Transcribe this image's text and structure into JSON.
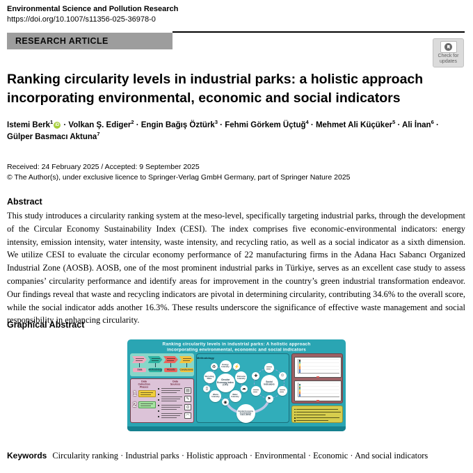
{
  "header": {
    "journal_title": "Environmental Science and Pollution Research",
    "doi": "https://doi.org/10.1007/s11356-025-36978-0",
    "article_type": "RESEARCH ARTICLE",
    "check_for_updates": {
      "line1": "Check for",
      "line2": "updates"
    }
  },
  "article": {
    "title_line1": "Ranking circularity levels in industrial parks: a holistic approach",
    "title_line2": "incorporating environmental, economic and social indicators",
    "authors": [
      {
        "name": "Istemi Berk",
        "sup": "1",
        "orcid": true
      },
      {
        "name": "Volkan Ş. Ediger",
        "sup": "2",
        "orcid": false
      },
      {
        "name": "Engin Bağış Öztürk",
        "sup": "3",
        "orcid": false
      },
      {
        "name": "Fehmi Görkem Üçtuğ",
        "sup": "4",
        "orcid": false
      },
      {
        "name": "Mehmet Ali Küçüker",
        "sup": "5",
        "orcid": false
      },
      {
        "name": "Ali İnan",
        "sup": "6",
        "orcid": false
      },
      {
        "name": "Gülper Basmacı Aktuna",
        "sup": "7",
        "orcid": false
      }
    ],
    "author_separator": " · ",
    "received_accepted": "Received: 24 February 2025 / Accepted: 9 September 2025",
    "copyright": "© The Author(s), under exclusive licence to Springer-Verlag GmbH Germany, part of Springer Nature 2025"
  },
  "abstract": {
    "heading": "Abstract",
    "body": "This study introduces a circularity ranking system at the meso-level, specifically targeting industrial parks, through the development of the Circular Economy Sustainability Index (CESI). The index comprises five economic-environmental indicators: energy intensity, emission intensity, water intensity, waste intensity, and recycling ratio, as well as a social indicator as a sixth dimension. We utilize CESI to evaluate the circular economy performance of 22 manufacturing firms in the Adana Hacı Sabancı Organized Industrial Zone (AOSB). AOSB, one of the most prominent industrial parks in Türkiye, serves as an excellent case study to assess companies’ circularity performance and identify areas for improvement in the country’s green industrial transformation endeavor. Our findings reveal that waste and recycling indicators are pivotal in determining circularity, contributing 34.6% to the overall score, while the social indicator adds another 16.3%. These results underscore the significance of effective waste management and social responsibility in enhancing circularity."
  },
  "graphical_abstract": {
    "heading": "Graphical Abstract",
    "figure": {
      "banner_title_line1": "Ranking circularity levels in industrial parks: A holistic approach",
      "banner_title_line2": "incorporating environmental, economic and social indicators",
      "flow_steps": [
        {
          "label": "Data",
          "color": "#f0a9bd"
        },
        {
          "label": "Methodology",
          "color": "#2db3a2"
        },
        {
          "label": "Results",
          "color": "#ec655c"
        },
        {
          "label": "Conclusions",
          "color": "#f3c33f"
        }
      ],
      "data_panel": {
        "phases_header": "Data Collection Phases",
        "sources_header": "Data Sources",
        "phase_numbers": [
          "1",
          "2"
        ],
        "source_icons": [
          "documents-icon",
          "survey-icon",
          "magnifier-icon",
          "statistics-icon"
        ]
      },
      "methodology_panel": {
        "label": "Methodology",
        "cei_center": "Circular Economy Index (CEI)",
        "cei_satellites": [
          "Energy Intensity",
          "Emission Intensity",
          "Water Intensity",
          "Waste Intensity",
          "Recycling Ratio"
        ],
        "cei_ring_icons": [
          "energy-icon",
          "emission-cloud-icon",
          "water-drop-icon",
          "waste-bin-icon",
          "recycle-icon"
        ],
        "social_center": "Social Indicators",
        "social_ring_icons": [
          "person-icon",
          "flag-icon",
          "plus-icon"
        ],
        "cesi_circle": "Circular Economy Sustainability Index (CESI)"
      },
      "results_panel": {
        "bar_palette": [
          "#4472c4",
          "#ed7d31",
          "#f7d44c",
          "#52b3a4",
          "#d85a54"
        ],
        "chart1_bars": [
          78,
          85,
          70,
          88,
          92,
          80,
          74,
          86,
          90,
          68,
          72,
          84,
          60,
          55,
          75,
          82,
          64,
          58,
          88,
          86,
          82,
          70,
          62,
          76,
          84,
          58,
          86,
          80
        ],
        "chart2_bars": [
          55,
          88,
          84,
          70,
          50,
          60,
          72,
          55,
          45,
          62,
          58,
          50,
          78,
          85,
          52,
          48,
          60,
          70,
          55,
          80,
          85,
          60,
          52,
          74,
          68,
          56,
          88,
          62
        ]
      },
      "colors": {
        "background": "#2aa5b3",
        "bottom_strip": "#15808f",
        "flow_box": "#87d7c9",
        "data_panel_bg": "#dcc3d8",
        "data_panel_border": "#7c3c49",
        "methodology_bg": "#31adba",
        "results_bg": "#9d6165",
        "findings_box": "#d6cd4d"
      }
    }
  },
  "keywords": {
    "label": "Keywords",
    "items": [
      "Circularity ranking",
      "Industrial parks",
      "Holistic approach",
      "Environmental",
      "Economic",
      "And social indicators"
    ],
    "separator": " · "
  }
}
